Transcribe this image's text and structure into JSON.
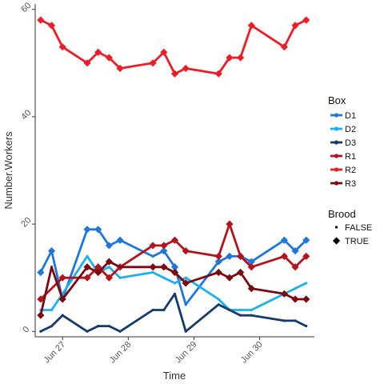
{
  "chart_data": {
    "type": "line",
    "xlabel": "Time",
    "ylabel": "Number.Workers",
    "x_ticks": [
      "Jun 27",
      "Jun 28",
      "Jun 29",
      "Jun 30"
    ],
    "y_ticks": [
      "0",
      "20",
      "40",
      "60"
    ],
    "ylim": [
      -1,
      61
    ],
    "xlim": [
      "Jun 26 14:00",
      "Jun 30 20:00"
    ],
    "grid": false,
    "legend_position": "right",
    "color_legend": {
      "title": "Box",
      "entries": [
        "D1",
        "D2",
        "D3",
        "R1",
        "R2",
        "R3"
      ]
    },
    "shape_legend": {
      "title": "Brood",
      "entries": [
        "FALSE",
        "TRUE"
      ]
    },
    "series": [
      {
        "name": "D1",
        "color": "#1f77dd",
        "x": [
          "Jun 26 16:00",
          "Jun 26 20:00",
          "Jun 27 00:00",
          "Jun 27 09:00",
          "Jun 27 13:00",
          "Jun 27 17:00",
          "Jun 27 21:00",
          "Jun 28 09:00",
          "Jun 28 13:00",
          "Jun 28 17:00",
          "Jun 28 21:00",
          "Jun 29 09:00",
          "Jun 29 13:00",
          "Jun 29 17:00",
          "Jun 29 21:00",
          "Jun 30 09:00",
          "Jun 30 13:00",
          "Jun 30 17:00"
        ],
        "y": [
          11,
          15,
          6,
          19,
          19,
          16,
          17,
          14,
          15,
          12,
          5,
          13,
          14,
          14,
          13,
          17,
          15,
          17
        ],
        "brood": [
          true,
          true,
          false,
          true,
          true,
          true,
          true,
          false,
          true,
          true,
          false,
          true,
          true,
          true,
          true,
          true,
          true,
          true
        ]
      },
      {
        "name": "D2",
        "color": "#1ab2ee",
        "x": [
          "Jun 26 16:00",
          "Jun 26 20:00",
          "Jun 27 00:00",
          "Jun 27 09:00",
          "Jun 27 13:00",
          "Jun 27 17:00",
          "Jun 27 21:00",
          "Jun 28 09:00",
          "Jun 28 13:00",
          "Jun 28 17:00",
          "Jun 28 21:00",
          "Jun 29 09:00",
          "Jun 29 13:00",
          "Jun 29 17:00",
          "Jun 29 21:00",
          "Jun 30 09:00",
          "Jun 30 13:00",
          "Jun 30 17:00"
        ],
        "y": [
          4,
          4,
          7,
          14,
          11,
          12,
          10,
          11,
          10,
          9,
          10,
          6,
          4,
          4,
          4,
          7,
          8,
          9
        ],
        "brood": [
          false,
          false,
          false,
          false,
          false,
          false,
          false,
          false,
          false,
          false,
          false,
          false,
          false,
          false,
          false,
          false,
          false,
          false
        ]
      },
      {
        "name": "D3",
        "color": "#143a6e",
        "x": [
          "Jun 26 16:00",
          "Jun 26 20:00",
          "Jun 27 00:00",
          "Jun 27 09:00",
          "Jun 27 13:00",
          "Jun 27 17:00",
          "Jun 27 21:00",
          "Jun 28 09:00",
          "Jun 28 13:00",
          "Jun 28 17:00",
          "Jun 28 21:00",
          "Jun 29 09:00",
          "Jun 29 13:00",
          "Jun 29 17:00",
          "Jun 29 21:00",
          "Jun 30 09:00",
          "Jun 30 13:00",
          "Jun 30 17:00"
        ],
        "y": [
          0,
          1,
          3,
          0,
          1,
          1,
          0,
          4,
          4,
          7,
          0,
          5,
          4,
          3,
          3,
          2,
          2,
          1
        ],
        "brood": [
          false,
          false,
          false,
          false,
          false,
          false,
          false,
          false,
          false,
          false,
          false,
          false,
          false,
          false,
          false,
          false,
          false,
          false
        ]
      },
      {
        "name": "R1",
        "color": "#b5121b",
        "x": [
          "Jun 26 16:00",
          "Jun 27 00:00",
          "Jun 27 09:00",
          "Jun 27 13:00",
          "Jun 27 17:00",
          "Jun 27 21:00",
          "Jun 28 09:00",
          "Jun 28 13:00",
          "Jun 28 17:00",
          "Jun 28 21:00",
          "Jun 29 09:00",
          "Jun 29 13:00",
          "Jun 29 17:00",
          "Jun 29 21:00",
          "Jun 30 09:00",
          "Jun 30 13:00",
          "Jun 30 17:00"
        ],
        "y": [
          6,
          10,
          10,
          12,
          10,
          12,
          16,
          16,
          17,
          15,
          14,
          20,
          14,
          12,
          14,
          12,
          14
        ],
        "brood": [
          true,
          true,
          true,
          true,
          true,
          true,
          true,
          true,
          true,
          true,
          true,
          true,
          true,
          true,
          true,
          true,
          true
        ]
      },
      {
        "name": "R2",
        "color": "#ee1c25",
        "x": [
          "Jun 26 16:00",
          "Jun 26 20:00",
          "Jun 27 00:00",
          "Jun 27 09:00",
          "Jun 27 13:00",
          "Jun 27 17:00",
          "Jun 27 21:00",
          "Jun 28 09:00",
          "Jun 28 13:00",
          "Jun 28 17:00",
          "Jun 28 21:00",
          "Jun 29 09:00",
          "Jun 29 13:00",
          "Jun 29 17:00",
          "Jun 29 21:00",
          "Jun 30 09:00",
          "Jun 30 13:00",
          "Jun 30 17:00"
        ],
        "y": [
          58,
          57,
          53,
          50,
          52,
          51,
          49,
          50,
          52,
          48,
          49,
          48,
          51,
          51,
          57,
          53,
          57,
          58
        ],
        "brood": [
          true,
          true,
          true,
          true,
          true,
          true,
          true,
          true,
          true,
          true,
          true,
          true,
          true,
          true,
          true,
          true,
          true,
          true
        ]
      },
      {
        "name": "R3",
        "color": "#7a0a10",
        "x": [
          "Jun 26 16:00",
          "Jun 26 20:00",
          "Jun 27 00:00",
          "Jun 27 09:00",
          "Jun 27 13:00",
          "Jun 27 17:00",
          "Jun 27 21:00",
          "Jun 28 09:00",
          "Jun 28 13:00",
          "Jun 28 17:00",
          "Jun 28 21:00",
          "Jun 29 09:00",
          "Jun 29 13:00",
          "Jun 29 17:00",
          "Jun 29 21:00",
          "Jun 30 09:00",
          "Jun 30 13:00",
          "Jun 30 17:00"
        ],
        "y": [
          3,
          12,
          6,
          12,
          11,
          13,
          12,
          12,
          12,
          11,
          9,
          11,
          10,
          11,
          8,
          7,
          6,
          6
        ],
        "brood": [
          true,
          false,
          true,
          true,
          true,
          true,
          false,
          true,
          true,
          true,
          true,
          true,
          true,
          true,
          true,
          true,
          true,
          true
        ]
      }
    ]
  }
}
